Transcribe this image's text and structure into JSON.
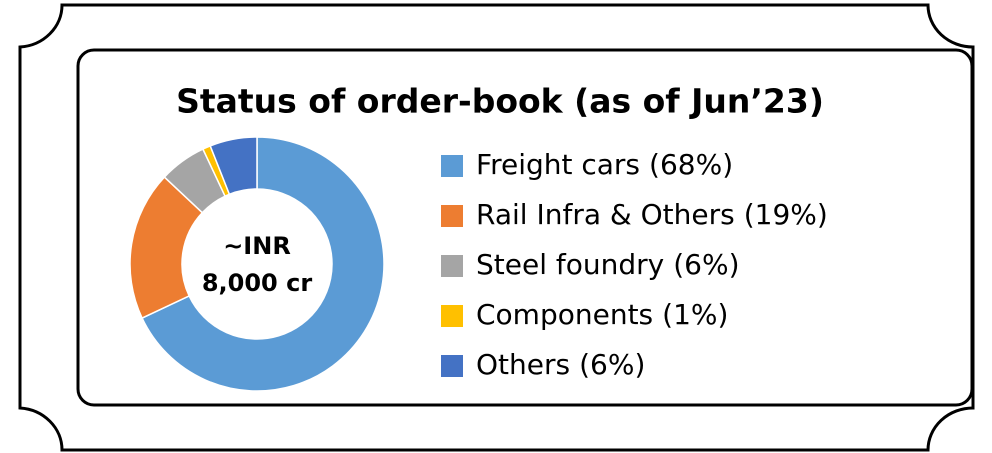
{
  "chart_data": {
    "type": "donut",
    "title": "Status of order-book (as of Jun’23)",
    "center_label": [
      "~INR",
      "8,000 cr"
    ],
    "categories": [
      "Freight cars",
      "Rail Infra & Others",
      "Steel foundry",
      "Components",
      "Others"
    ],
    "values": [
      68,
      19,
      6,
      1,
      6
    ],
    "value_labels": [
      "(68%)",
      "(19%)",
      "(6%)",
      "(1%)",
      "(6%)"
    ],
    "colors": [
      "#5b9bd5",
      "#ed7d31",
      "#a5a5a5",
      "#ffc000",
      "#4472c4"
    ],
    "legend": "right"
  }
}
